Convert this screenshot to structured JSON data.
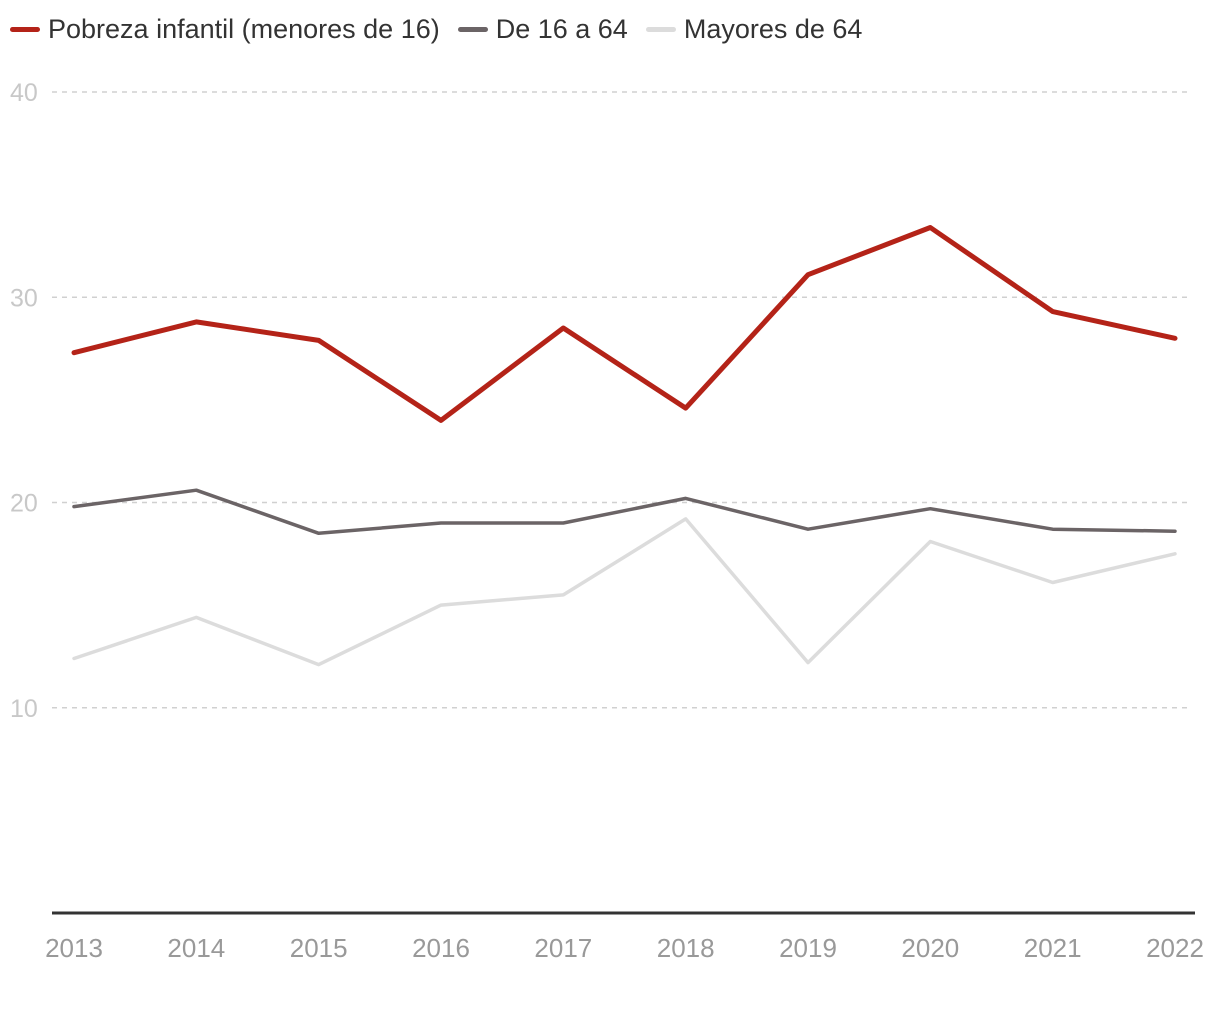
{
  "chart_data": {
    "type": "line",
    "title": "",
    "xlabel": "",
    "ylabel": "",
    "x": [
      "2013",
      "2014",
      "2015",
      "2016",
      "2017",
      "2018",
      "2019",
      "2020",
      "2021",
      "2022"
    ],
    "ylim": [
      0,
      40
    ],
    "yticks": [
      "10",
      "20",
      "30",
      "40"
    ],
    "grid": true,
    "legend_position": "top-left",
    "series": [
      {
        "name": "Pobreza infantil (menores de 16)",
        "color": "#b42318",
        "values": [
          27.3,
          28.8,
          27.9,
          24.0,
          28.5,
          24.6,
          31.1,
          33.4,
          29.3,
          28.0
        ]
      },
      {
        "name": "De 16 a 64",
        "color": "#6b6466",
        "values": [
          19.8,
          20.6,
          18.5,
          19.0,
          19.0,
          20.2,
          18.7,
          19.7,
          18.7,
          18.6
        ]
      },
      {
        "name": "Mayores de 64",
        "color": "#dcdcdc",
        "values": [
          12.4,
          14.4,
          12.1,
          15.0,
          15.5,
          19.2,
          12.2,
          18.1,
          16.1,
          17.5
        ]
      }
    ]
  }
}
